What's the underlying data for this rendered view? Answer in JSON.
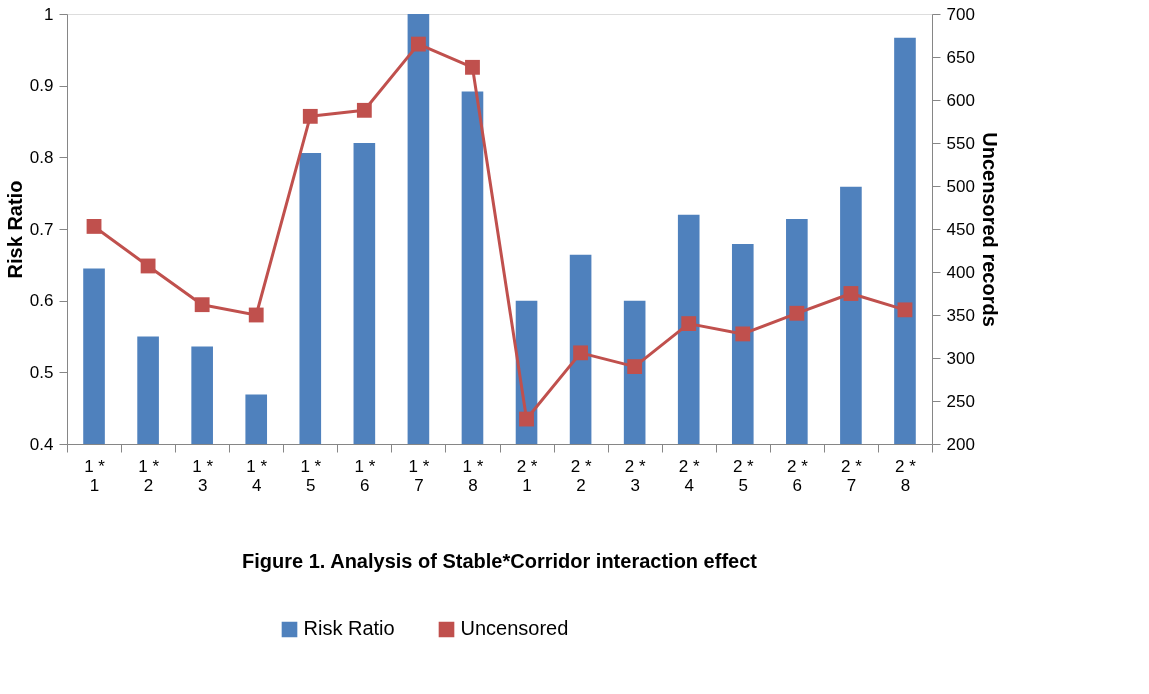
{
  "chart_data": {
    "type": "bar",
    "title": "Figure 1. Analysis of Stable*Corridor interaction effect",
    "ylabel": "Risk Ratio",
    "y2label": "Uncensored records",
    "categories": [
      "1 *\n1",
      "1 *\n2",
      "1 *\n3",
      "1 *\n4",
      "1 *\n5",
      "1 *\n6",
      "1 *\n7",
      "1 *\n8",
      "2 *\n1",
      "2 *\n2",
      "2 *\n3",
      "2 *\n4",
      "2 *\n5",
      "2 *\n6",
      "2 *\n7",
      "2 *\n8"
    ],
    "series": [
      {
        "name": "Risk Ratio",
        "type": "bar",
        "color": "#4f81bd",
        "values": [
          0.645,
          0.55,
          0.536,
          0.469,
          0.806,
          0.82,
          1.0,
          0.892,
          0.6,
          0.664,
          0.6,
          0.72,
          0.679,
          0.714,
          0.759,
          0.967
        ]
      },
      {
        "name": "Uncensored",
        "type": "line",
        "axis": "y2",
        "color": "#c0504d",
        "marker": "square",
        "values": [
          453,
          407,
          362,
          350,
          581,
          588,
          665,
          638,
          229,
          306,
          290,
          340,
          328,
          352,
          375,
          356
        ]
      }
    ],
    "ylim": [
      0.4,
      1
    ],
    "yticks": [
      0.4,
      0.5,
      0.6,
      0.7,
      0.8,
      0.9,
      {
        "value": 1,
        "label": "1"
      }
    ],
    "y2lim": [
      200,
      700
    ],
    "y2ticks": [
      200,
      250,
      300,
      350,
      400,
      450,
      500,
      550,
      600,
      650,
      700
    ],
    "grid": false,
    "legend": "bottom"
  }
}
